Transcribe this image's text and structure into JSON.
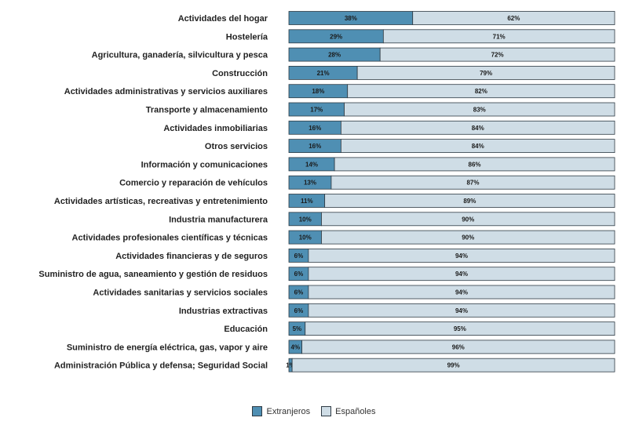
{
  "chart_data": {
    "type": "bar",
    "orientation": "horizontal",
    "stacked": true,
    "normalized_percent": true,
    "title": "",
    "xlabel": "",
    "ylabel": "",
    "xlim": [
      0,
      100
    ],
    "grid": false,
    "legend_position": "bottom-center",
    "colors": {
      "extranjeros": "#4f8fb3",
      "espanoles": "#cfdde6",
      "outline": "#2f3b44"
    },
    "categories": [
      "Actividades del hogar",
      "Hostelería",
      "Agricultura, ganadería, silvicultura y pesca",
      "Construcción",
      "Actividades administrativas y servicios auxiliares",
      "Transporte y almacenamiento",
      "Actividades inmobiliarias",
      "Otros servicios",
      "Información y comunicaciones",
      "Comercio y reparación de vehículos",
      "Actividades artísticas, recreativas y entretenimiento",
      "Industria manufacturera",
      "Actividades profesionales científicas y técnicas",
      "Actividades financieras y de seguros",
      "Suministro de agua, saneamiento y gestión de residuos",
      "Actividades sanitarias y servicios sociales",
      "Industrias extractivas",
      "Educación",
      "Suministro de energía eléctrica, gas, vapor y aire",
      "Administración Pública y defensa; Seguridad Social"
    ],
    "series": [
      {
        "name": "Extranjeros",
        "values": [
          38,
          29,
          28,
          21,
          18,
          17,
          16,
          16,
          14,
          13,
          11,
          10,
          10,
          6,
          6,
          6,
          6,
          5,
          4,
          1
        ]
      },
      {
        "name": "Españoles",
        "values": [
          62,
          71,
          72,
          79,
          82,
          83,
          84,
          84,
          86,
          87,
          89,
          90,
          90,
          94,
          94,
          94,
          94,
          95,
          96,
          99
        ]
      }
    ]
  }
}
